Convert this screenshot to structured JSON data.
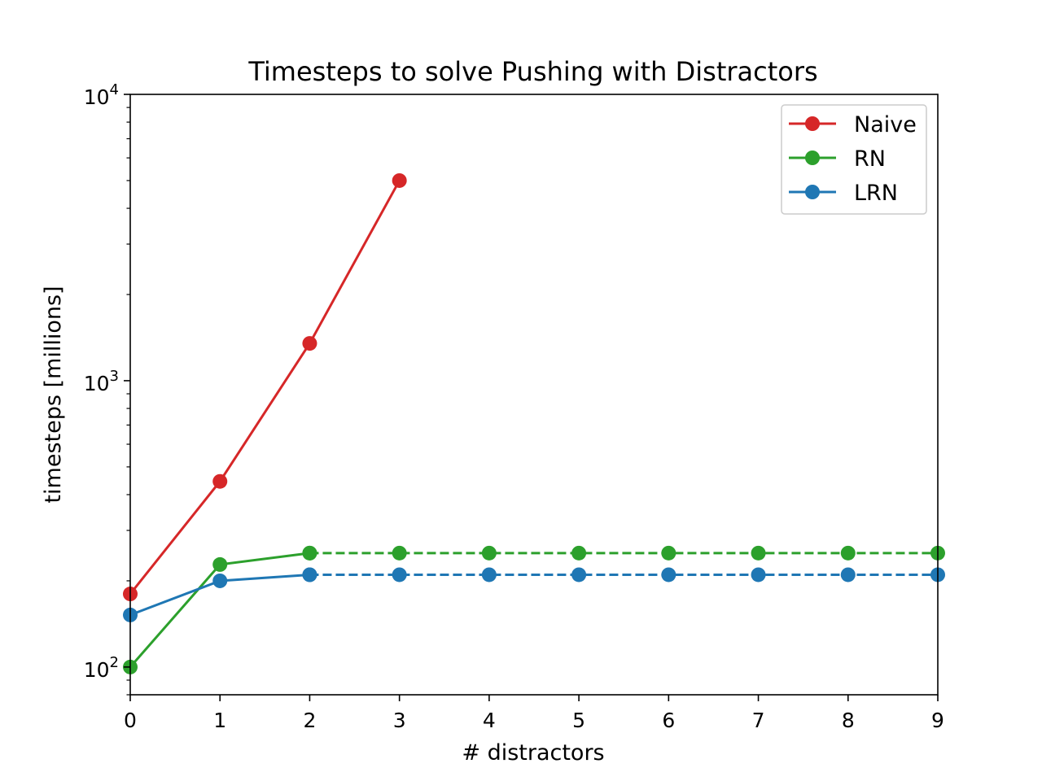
{
  "chart_data": {
    "type": "line",
    "title": "Timesteps to solve Pushing with Distractors",
    "xlabel": "# distractors",
    "ylabel": "timesteps [millions]",
    "xlim": [
      0,
      9
    ],
    "ylim": [
      80,
      10000
    ],
    "yscale": "log",
    "xticks": [
      "0",
      "1",
      "2",
      "3",
      "4",
      "5",
      "6",
      "7",
      "8",
      "9"
    ],
    "yticks": [
      {
        "value": 100,
        "base": "10",
        "exp": "2"
      },
      {
        "value": 1000,
        "base": "10",
        "exp": "3"
      },
      {
        "value": 10000,
        "base": "10",
        "exp": "4"
      }
    ],
    "grid": false,
    "legend_position": "top-right",
    "series": [
      {
        "name": "Naive",
        "color": "#d62728",
        "solid": {
          "x": [
            0,
            1,
            2,
            3
          ],
          "y": [
            180,
            445,
            1350,
            5000
          ]
        },
        "dashed": null
      },
      {
        "name": "RN",
        "color": "#2ca02c",
        "solid": {
          "x": [
            0,
            1,
            2
          ],
          "y": [
            100,
            228,
            250
          ]
        },
        "dashed": {
          "x": [
            2,
            3,
            4,
            5,
            6,
            7,
            8,
            9
          ],
          "y": [
            250,
            250,
            250,
            250,
            250,
            250,
            250,
            250
          ]
        }
      },
      {
        "name": "LRN",
        "color": "#1f77b4",
        "solid": {
          "x": [
            0,
            1,
            2
          ],
          "y": [
            152,
            200,
            210
          ]
        },
        "dashed": {
          "x": [
            2,
            3,
            4,
            5,
            6,
            7,
            8,
            9
          ],
          "y": [
            210,
            210,
            210,
            210,
            210,
            210,
            210,
            210
          ]
        }
      }
    ]
  }
}
